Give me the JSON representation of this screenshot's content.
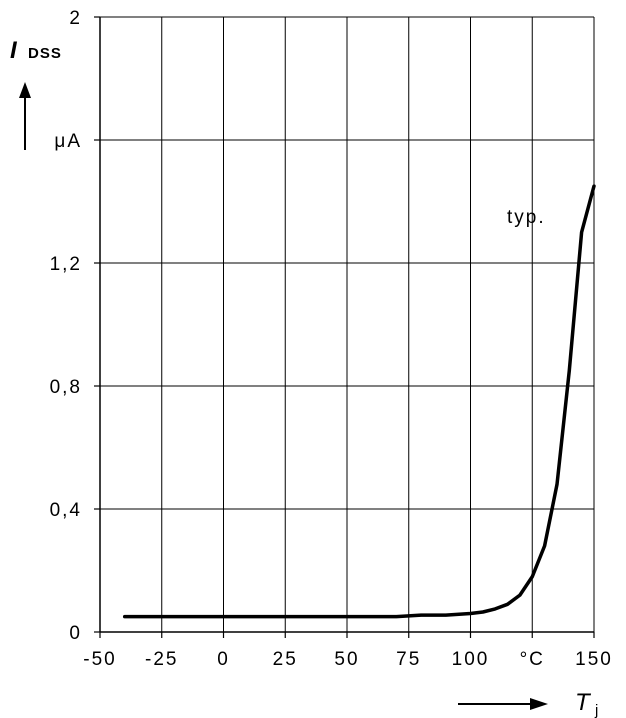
{
  "chart_data": {
    "type": "line",
    "xlim": [
      -50,
      150
    ],
    "ylim": [
      0,
      2
    ],
    "x_ticks": [
      -50,
      -25,
      0,
      25,
      50,
      75,
      100,
      125,
      150
    ],
    "x_tick_labels": [
      "-50",
      "-25",
      "0",
      "25",
      "50",
      "75",
      "100",
      "°C",
      "150"
    ],
    "y_ticks": [
      0,
      0.4,
      0.8,
      1.2,
      1.6,
      2
    ],
    "y_tick_labels": [
      "0",
      "0,4",
      "0,8",
      "1,2",
      "μA",
      "2"
    ],
    "grid": true,
    "ylabel": {
      "symbol": "I",
      "subscript": "DSS"
    },
    "xlabel": {
      "symbol": "T",
      "subscript": "j"
    },
    "annotation": "typ.",
    "series": [
      {
        "x": [
          -40,
          -20,
          0,
          20,
          40,
          60,
          70,
          80,
          90,
          100,
          105,
          110,
          115,
          120,
          125,
          130,
          135,
          140,
          145,
          150
        ],
        "y": [
          0.05,
          0.05,
          0.05,
          0.05,
          0.05,
          0.05,
          0.05,
          0.055,
          0.055,
          0.06,
          0.065,
          0.075,
          0.09,
          0.12,
          0.18,
          0.28,
          0.48,
          0.85,
          1.3,
          1.45
        ]
      }
    ]
  }
}
